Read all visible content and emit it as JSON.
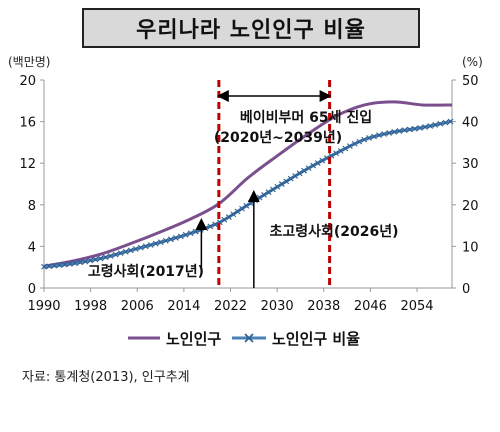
{
  "title": "우리나라 노인인구 비율",
  "source": "자료: 통계청(2013), 인구추계",
  "chart_data": {
    "type": "line",
    "title": "우리나라 노인인구 비율",
    "y_left_unit": "(백만명)",
    "y_right_unit": "(%)",
    "ylim_left": [
      0,
      20
    ],
    "ylim_right": [
      0,
      50
    ],
    "xlim": [
      1990,
      2060
    ],
    "x_ticks": [
      1990,
      1998,
      2006,
      2014,
      2022,
      2030,
      2038,
      2046,
      2054
    ],
    "y_left_ticks": [
      0,
      4,
      8,
      12,
      16,
      20
    ],
    "y_right_ticks": [
      0,
      10,
      20,
      30,
      40,
      50
    ],
    "grid": false,
    "legend_position": "bottom",
    "series": [
      {
        "name": "노인인구",
        "axis": "left",
        "color": "#7b4f8e",
        "x": [
          1990,
          1995,
          2000,
          2005,
          2010,
          2015,
          2020,
          2025,
          2030,
          2035,
          2040,
          2045,
          2050,
          2055,
          2060
        ],
        "values": [
          2.1,
          2.6,
          3.3,
          4.3,
          5.4,
          6.6,
          8.1,
          10.6,
          12.7,
          14.7,
          16.5,
          17.6,
          17.9,
          17.6,
          17.6
        ]
      },
      {
        "name": "노인인구 비율",
        "axis": "right",
        "color": "#4a7fb5",
        "x": [
          1990,
          1995,
          2000,
          2005,
          2010,
          2015,
          2020,
          2025,
          2030,
          2035,
          2040,
          2045,
          2050,
          2055,
          2060
        ],
        "values": [
          5.1,
          5.9,
          7.2,
          9.1,
          11.0,
          13.1,
          15.7,
          20.0,
          24.3,
          28.5,
          32.3,
          35.7,
          37.5,
          38.6,
          40.1
        ]
      }
    ],
    "vlines": [
      2020,
      2039
    ],
    "annotations": [
      {
        "text": "베이비부머 65세 진입",
        "line2": "(2020년~2039년)"
      },
      {
        "text": "고령사회(2017년)",
        "arrow_x": 2017
      },
      {
        "text": "초고령사회(2026년)",
        "arrow_x": 2026
      }
    ]
  }
}
